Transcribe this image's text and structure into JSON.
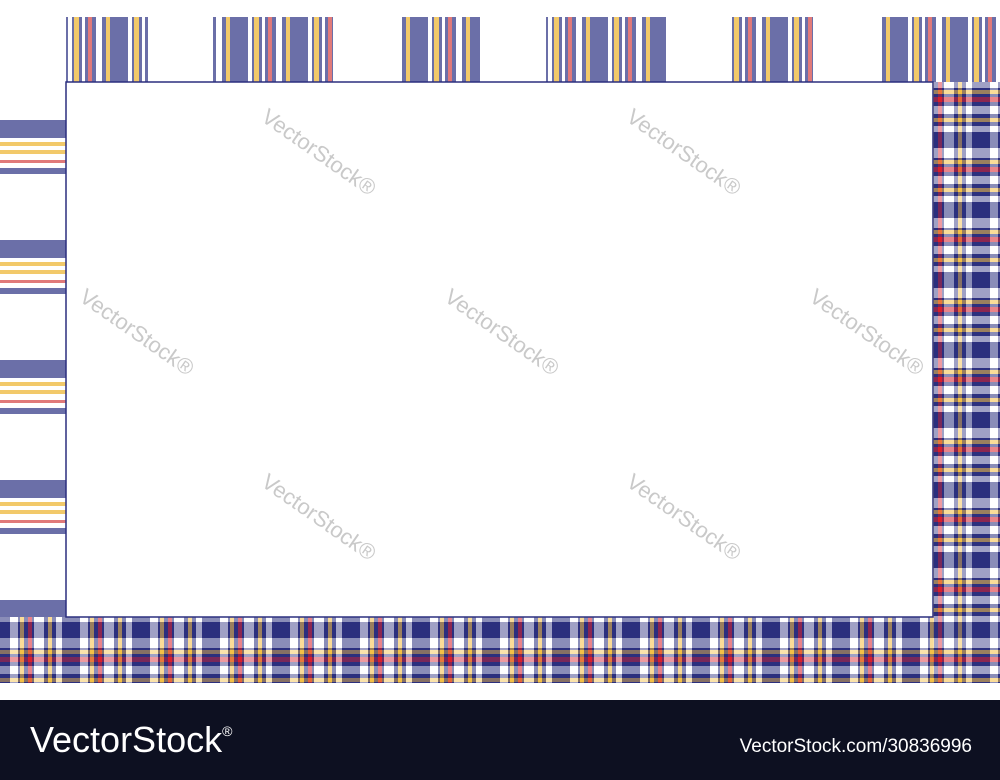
{
  "watermark": "VectorStock®",
  "footer": {
    "logo": "VectorStock",
    "registered": "®",
    "url": "VectorStock.com/30836996"
  }
}
